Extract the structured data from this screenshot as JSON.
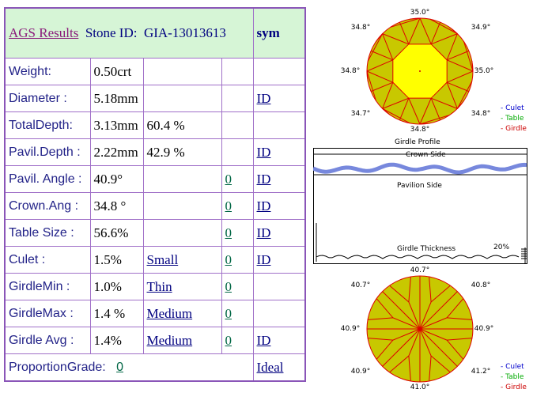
{
  "header": {
    "title": "AGS Results",
    "stone_prefix": "Stone ID:",
    "stone_id": "GIA-13013613",
    "sym": "sym"
  },
  "rows": [
    {
      "label": "Weight:",
      "value": "0.50crt",
      "extra": "",
      "grade": "",
      "num": "",
      "link": ""
    },
    {
      "label": "Diameter :",
      "value": "5.18mm",
      "extra": "",
      "grade": "",
      "num": "",
      "link": "ID"
    },
    {
      "label": "TotalDepth:",
      "value": "3.13mm",
      "extra": "60.4 %",
      "grade": "",
      "num": "",
      "link": ""
    },
    {
      "label": "Pavil.Depth :",
      "value": "2.22mm",
      "extra": "42.9 %",
      "grade": "",
      "num": "",
      "link": "ID"
    },
    {
      "label": "Pavil. Angle :",
      "value": "40.9°",
      "extra": "",
      "grade": "",
      "num": "0",
      "link": "ID"
    },
    {
      "label": "Crown.Ang :",
      "value": "34.8 °",
      "extra": "",
      "grade": "",
      "num": "0",
      "link": "ID"
    },
    {
      "label": "Table Size :",
      "value": "56.6%",
      "extra": "",
      "grade": "",
      "num": "0",
      "link": "ID"
    },
    {
      "label": "Culet :",
      "value": "1.5%",
      "extra": "",
      "grade": "Small",
      "num": "0",
      "link": "ID"
    },
    {
      "label": "GirdleMin :",
      "value": "1.0%",
      "extra": "",
      "grade": "Thin",
      "num": "0",
      "link": ""
    },
    {
      "label": "GirdleMax :",
      "value": "1.4 %",
      "extra": "",
      "grade": "Medium",
      "num": "0",
      "link": ""
    },
    {
      "label": "Girdle Avg :",
      "value": "1.4%",
      "extra": "",
      "grade": "Medium",
      "num": "0",
      "link": "ID"
    }
  ],
  "proportion": {
    "label": "ProportionGrade:",
    "value": "0",
    "grade": "Ideal"
  },
  "crown_diagram": {
    "labels": [
      "35.0°",
      "34.9°",
      "34.8°",
      "35.0°",
      "34.8°",
      "34.7°",
      "34.8°",
      "34.8°"
    ],
    "colors": {
      "outer": "#c8c800",
      "table": "#ffff00",
      "lines": "#dd0000"
    }
  },
  "legend": {
    "culet": "- Culet",
    "table": "- Table",
    "girdle": "- Girdle",
    "culet_color": "#0000cc",
    "table_color": "#00aa00",
    "girdle_color": "#cc0000"
  },
  "profile": {
    "title": "Girdle Profile",
    "crown_side": "Crown Side",
    "pavilion_side": "Pavilion Side",
    "thickness": "Girdle Thickness",
    "percent": "20%"
  },
  "pavilion_diagram": {
    "labels": [
      "40.7°",
      "40.8°",
      "40.9°",
      "41.2°",
      "41.0°",
      "40.9°",
      "40.9°",
      "40.7°"
    ]
  },
  "legend2": {
    "culet": "- Culet",
    "table": "- Table",
    "girdle": "- Girdle"
  }
}
